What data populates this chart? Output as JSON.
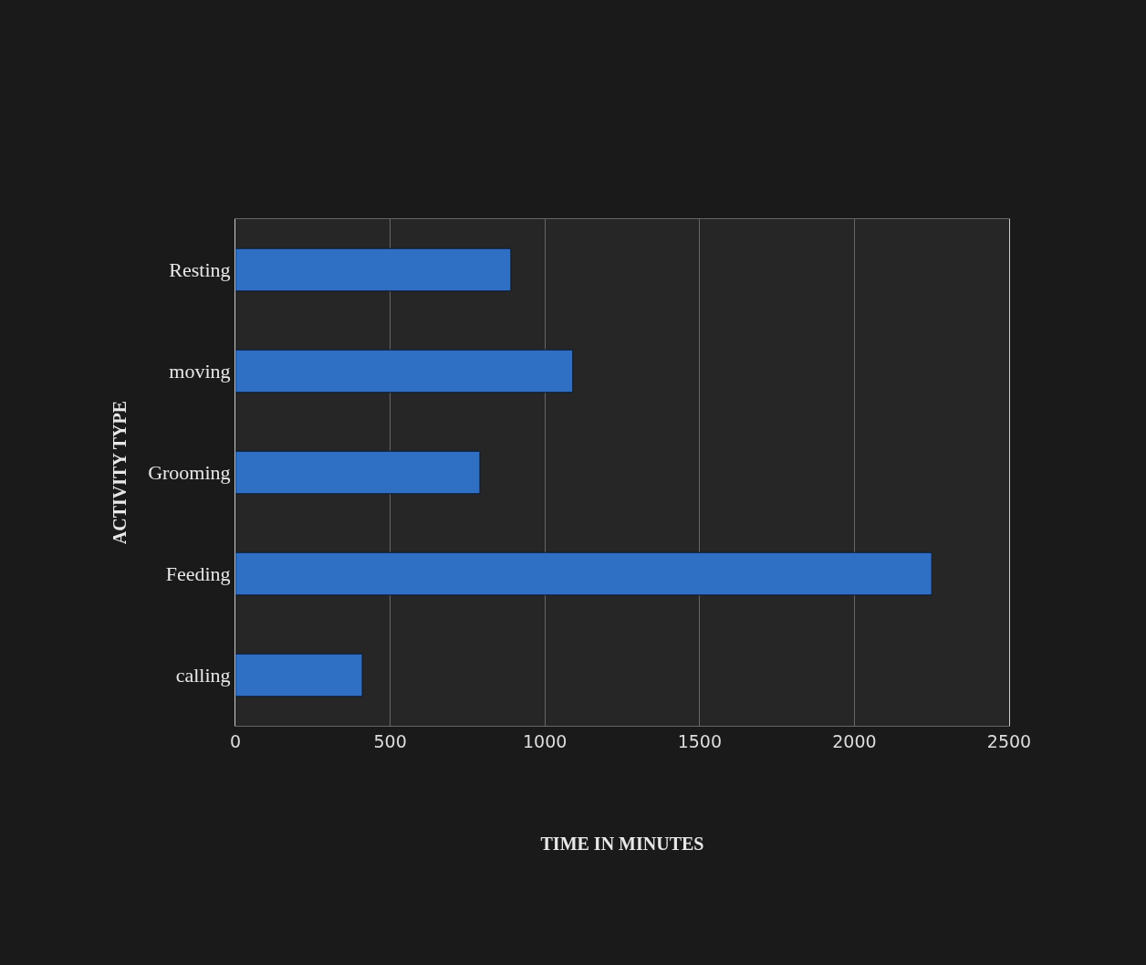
{
  "chart_data": {
    "type": "bar",
    "orientation": "horizontal",
    "xlabel": "TIME IN MINUTES",
    "ylabel": "ACTIVITY TYPE",
    "categories": [
      "Resting",
      "moving",
      "Grooming",
      "Feeding",
      "calling"
    ],
    "values": [
      890,
      1090,
      790,
      2250,
      410
    ],
    "color": "#2f6fc4",
    "xlim": [
      0,
      2500
    ],
    "xticks": [
      0,
      500,
      1000,
      1500,
      2000,
      2500
    ],
    "grid": "x"
  }
}
